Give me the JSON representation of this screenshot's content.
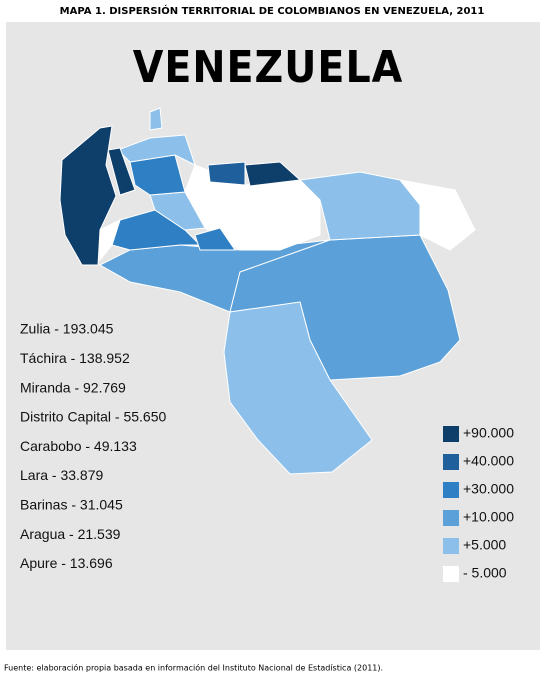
{
  "header": {
    "title": "MAPA 1. DISPERSIÓN TERRITORIAL DE COLOMBIANOS EN VENEZUELA, 2011"
  },
  "map": {
    "title": "VENEZUELA",
    "list": [
      "Zulia - 193.045",
      "Táchira - 138.952",
      "Miranda - 92.769",
      "Distrito Capital - 55.650",
      "Carabobo - 49.133",
      "Lara - 33.879",
      "Barinas - 31.045",
      "Aragua - 21.539",
      "Apure - 13.696"
    ],
    "legend": [
      {
        "label": "+90.000",
        "color": "#0e3e6a"
      },
      {
        "label": "+40.000",
        "color": "#1f5f9c"
      },
      {
        "label": "+30.000",
        "color": "#2f7fc4"
      },
      {
        "label": "+10.000",
        "color": "#5ba0d9"
      },
      {
        "label": "+5.000",
        "color": "#8cc0ea"
      },
      {
        "label": "- 5.000",
        "color": "#ffffff"
      }
    ]
  },
  "source": "Fuente: elaboración propia basada en información del Instituto Nacional de Estadística (2011)."
}
